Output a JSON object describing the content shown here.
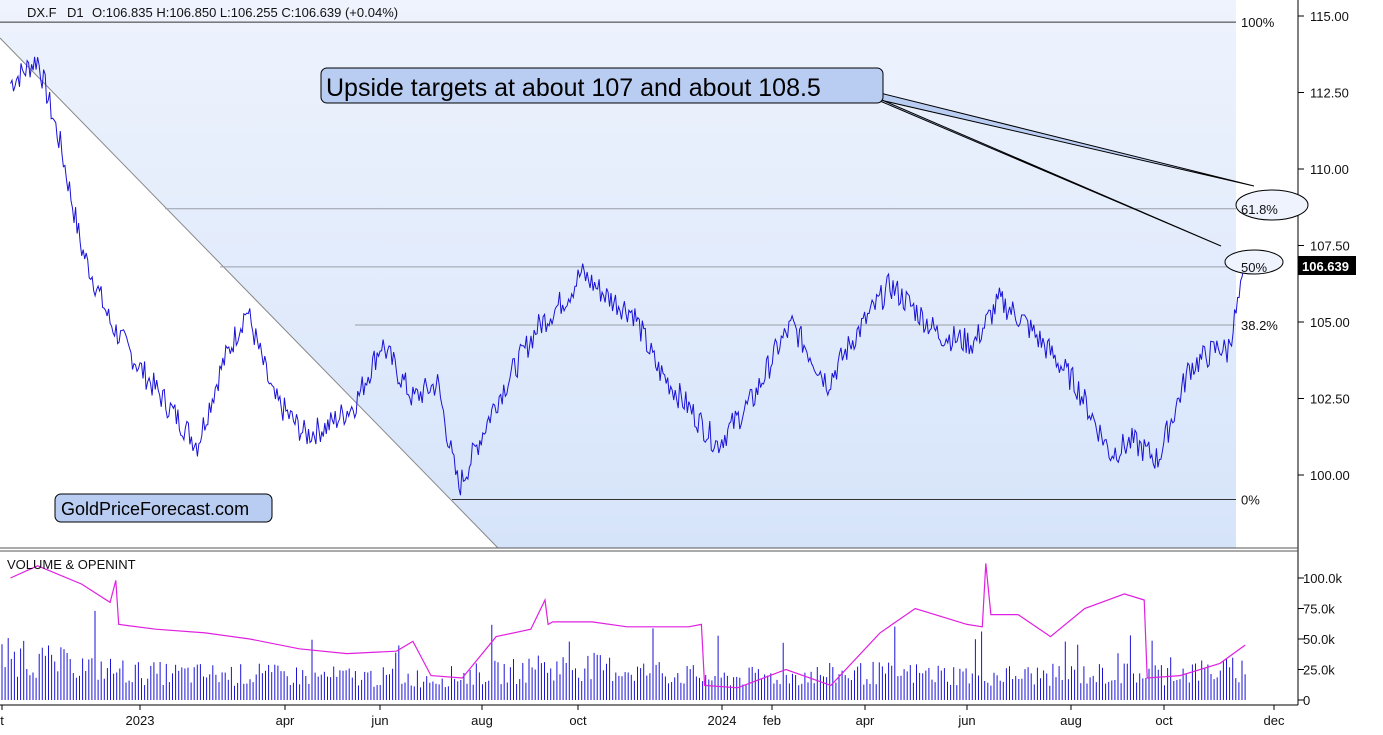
{
  "header": {
    "symbol": "DX.F",
    "timeframe": "D1",
    "ohlc": "O:106.835  H:106.850  L:106.255  C:106.639  (+0.04%)"
  },
  "callout": {
    "text": "Upside targets at about 107 and about 108.5"
  },
  "watermark": {
    "text": "GoldPriceForecast.com"
  },
  "last_price": "106.639",
  "colors": {
    "price": "#1a12d6",
    "oi_line": "#e020e0",
    "volume": "#1a12d6",
    "fib_fill": "#dbe8fb",
    "callout_fill": "#b9cdf3",
    "price_tag": "#000000"
  },
  "chart_data": [
    {
      "type": "line",
      "title": "",
      "y_axis": {
        "ticks": [
          "100.00",
          "102.50",
          "105.00",
          "107.50",
          "110.00",
          "112.50",
          "115.00"
        ],
        "ylim": [
          99.2,
          115.2
        ],
        "side": "right"
      },
      "x_axis": {
        "ticks": [
          "t",
          "2023",
          "apr",
          "jun",
          "aug",
          "oct",
          "2024",
          "feb",
          "apr",
          "jun",
          "aug",
          "oct",
          "dec"
        ]
      },
      "fibonacci": [
        {
          "label": "100%",
          "value": 114.8
        },
        {
          "label": "61.8%",
          "value": 108.7
        },
        {
          "label": "50%",
          "value": 106.8
        },
        {
          "label": "38.2%",
          "value": 104.9
        },
        {
          "label": "0%",
          "value": 99.2
        }
      ],
      "series": [
        {
          "x": [
            "2022-10-01",
            "2022-10-20",
            "2022-11-05",
            "2022-11-20",
            "2022-12-10",
            "2022-12-31",
            "2023-01-20",
            "2023-02-05",
            "2023-02-20",
            "2023-03-08",
            "2023-03-25",
            "2023-04-14",
            "2023-04-28",
            "2023-05-15",
            "2023-06-01",
            "2023-06-20",
            "2023-07-05",
            "2023-07-14",
            "2023-07-18",
            "2023-08-10",
            "2023-09-05",
            "2023-09-25",
            "2023-10-03",
            "2023-10-20",
            "2023-11-05",
            "2023-11-20",
            "2023-12-10",
            "2023-12-28",
            "2024-01-20",
            "2024-02-05",
            "2024-02-14",
            "2024-03-08",
            "2024-03-25",
            "2024-04-16",
            "2024-05-01",
            "2024-05-15",
            "2024-06-05",
            "2024-06-20",
            "2024-07-03",
            "2024-07-20",
            "2024-08-05",
            "2024-08-27",
            "2024-09-10",
            "2024-09-27",
            "2024-10-15",
            "2024-11-01",
            "2024-11-05",
            "2024-11-15"
          ],
          "values": [
            112.8,
            113.6,
            110.8,
            107.4,
            105.0,
            103.5,
            102.1,
            101.0,
            103.5,
            105.4,
            102.5,
            101.3,
            101.6,
            102.3,
            104.3,
            102.5,
            103.0,
            100.5,
            99.6,
            102.4,
            104.8,
            105.9,
            106.6,
            105.8,
            105.3,
            103.5,
            102.2,
            101.0,
            102.5,
            104.2,
            104.9,
            103.0,
            104.5,
            106.2,
            105.4,
            104.6,
            104.3,
            105.7,
            105.1,
            104.0,
            102.9,
            100.7,
            101.1,
            100.5,
            103.5,
            104.2,
            104.0,
            106.6
          ]
        }
      ]
    },
    {
      "type": "bar",
      "title": "VOLUME & OPENINT",
      "y_axis": {
        "ticks": [
          "0",
          "25.0k",
          "50.0k",
          "75.0k",
          "100.0k"
        ],
        "ylim": [
          0,
          110000
        ]
      },
      "series": [
        {
          "name": "VOLUME",
          "type": "bar",
          "x": [
            "2022-10-01",
            "2022-12-31",
            "2023-04-01",
            "2023-07-01",
            "2023-10-01",
            "2023-12-31",
            "2024-04-01",
            "2024-07-01",
            "2024-10-01",
            "2024-11-15"
          ],
          "values": [
            35000,
            22000,
            20000,
            18000,
            28000,
            18000,
            22000,
            20000,
            22000,
            25000
          ]
        },
        {
          "name": "OPENINT",
          "type": "line",
          "x": [
            "2022-10-01",
            "2022-10-20",
            "2022-11-20",
            "2022-12-10",
            "2022-12-14",
            "2022-12-16",
            "2023-01-10",
            "2023-02-10",
            "2023-03-10",
            "2023-04-10",
            "2023-05-10",
            "2023-06-10",
            "2023-06-20",
            "2023-07-01",
            "2023-07-20",
            "2023-08-10",
            "2023-09-01",
            "2023-09-10",
            "2023-09-12",
            "2023-09-15",
            "2023-10-10",
            "2023-11-01",
            "2023-12-10",
            "2023-12-18",
            "2023-12-20",
            "2024-01-10",
            "2024-02-10",
            "2024-03-10",
            "2024-04-10",
            "2024-05-01",
            "2024-06-01",
            "2024-06-10",
            "2024-06-12",
            "2024-06-15",
            "2024-07-01",
            "2024-07-20",
            "2024-08-10",
            "2024-09-05",
            "2024-09-18",
            "2024-09-20",
            "2024-10-10",
            "2024-11-01",
            "2024-11-15"
          ],
          "values": [
            100000,
            110000,
            95000,
            80000,
            98000,
            62000,
            58000,
            55000,
            50000,
            42000,
            38000,
            40000,
            48000,
            20000,
            18000,
            52000,
            58000,
            82000,
            62000,
            64000,
            64000,
            60000,
            60000,
            62000,
            12000,
            10000,
            25000,
            12000,
            55000,
            75000,
            62000,
            60000,
            112000,
            70000,
            70000,
            52000,
            75000,
            87000,
            82000,
            18000,
            20000,
            30000,
            45000
          ]
        }
      ]
    }
  ]
}
